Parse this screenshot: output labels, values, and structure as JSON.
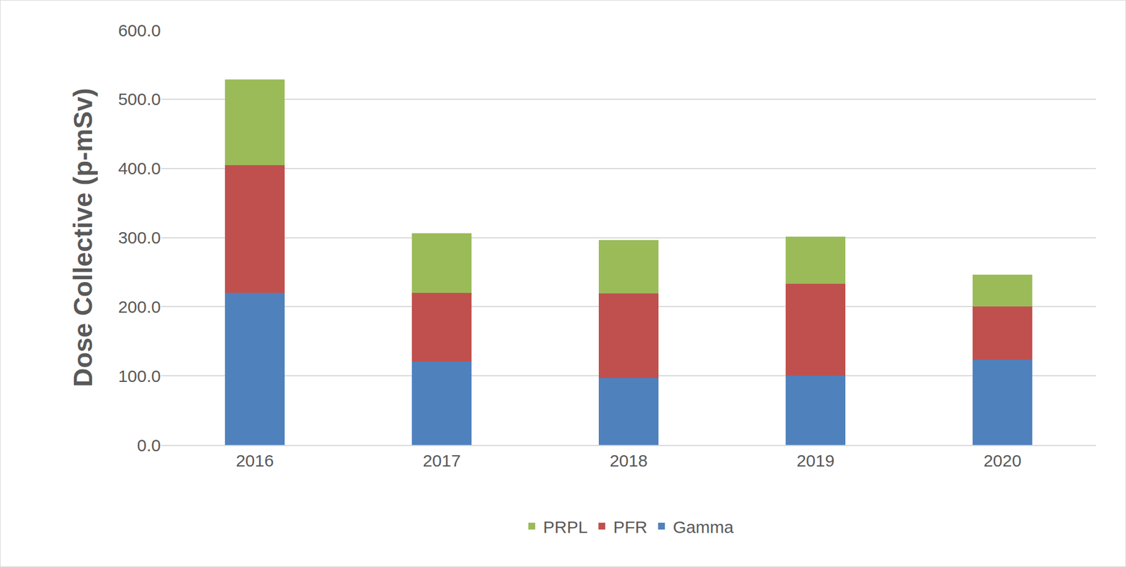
{
  "chart_data": {
    "type": "bar",
    "stacked": true,
    "y_label": "Dose Collective (p-mSv)",
    "categories": [
      "2016",
      "2017",
      "2018",
      "2019",
      "2020"
    ],
    "series": [
      {
        "name": "Gamma",
        "color": "#4f81bd",
        "values": [
          220,
          121,
          97,
          100,
          123
        ]
      },
      {
        "name": "PFR",
        "color": "#c0504d",
        "values": [
          185,
          99,
          122,
          133,
          77
        ]
      },
      {
        "name": "PRPL",
        "color": "#9bbb59",
        "values": [
          124,
          86,
          77,
          68,
          46
        ]
      }
    ],
    "ylim": [
      0,
      600
    ],
    "yticks": [
      {
        "value": 0,
        "label": "0.0"
      },
      {
        "value": 100,
        "label": "100.0"
      },
      {
        "value": 200,
        "label": "200.0"
      },
      {
        "value": 300,
        "label": "300.0"
      },
      {
        "value": 400,
        "label": "400.0"
      },
      {
        "value": 500,
        "label": "500.0"
      },
      {
        "value": 600,
        "label": "600.0"
      }
    ],
    "grid": true,
    "legend": "bottom"
  }
}
